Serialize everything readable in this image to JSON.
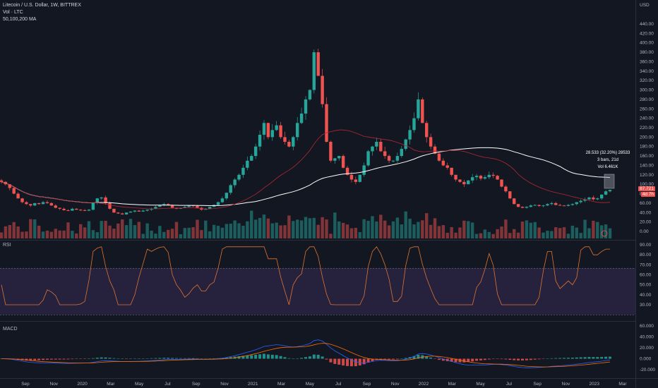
{
  "header": {
    "symbol_line": "Litecoin / U.S. Dollar, 1W, BITTREX",
    "volume_line": "Vol · LTC",
    "ma_line": "50,100,200 MA"
  },
  "price_axis": {
    "currency": "USD",
    "ticks": [
      "440.00",
      "420.00",
      "400.00",
      "380.00",
      "360.00",
      "340.00",
      "320.00",
      "300.00",
      "280.00",
      "260.00",
      "240.00",
      "220.00",
      "200.00",
      "180.00",
      "160.00",
      "140.00",
      "120.00",
      "100.00",
      "80.00",
      "60.00",
      "40.00",
      "20.00",
      "0.00"
    ],
    "last_price": "87.721",
    "last_price_sub": "4d 7h"
  },
  "measure_tool": {
    "line1": "28.533 (32.20%) 28533",
    "line2": "3 bars, 21d",
    "line3": "Vol 6.461K"
  },
  "rsi": {
    "label": "RSI",
    "ticks": [
      "90.00",
      "80.00",
      "70.00",
      "60.00",
      "50.00",
      "40.00",
      "30.00"
    ],
    "upper_band": 70,
    "lower_band": 30
  },
  "macd": {
    "label": "MACD",
    "ticks": [
      "60.000",
      "40.000",
      "20.000",
      "0.000",
      "-20.000"
    ]
  },
  "time_axis": {
    "labels": [
      "Sep",
      "Nov",
      "2020",
      "Mar",
      "May",
      "Jul",
      "Sep",
      "Nov",
      "2021",
      "Mar",
      "May",
      "Jul",
      "Sep",
      "Nov",
      "2022",
      "Mar",
      "May",
      "Jul",
      "Sep",
      "Nov",
      "2023",
      "Mar"
    ]
  },
  "colors": {
    "up": "#26a69a",
    "down": "#ef5350",
    "ma_white": "#ffffff",
    "ma_red": "#b22833",
    "rsi_line": "#e0742d",
    "rsi_band": "#7e57c2",
    "macd_line": "#2962ff",
    "signal_line": "#ff6d00",
    "background": "#131722"
  },
  "chart_data": {
    "type": "candlestick",
    "timeframe": "1W",
    "price_range": [
      0,
      440
    ],
    "closes_approx": [
      105,
      100,
      92,
      80,
      70,
      62,
      58,
      55,
      60,
      58,
      62,
      60,
      55,
      50,
      48,
      45,
      44,
      48,
      46,
      45,
      44,
      46,
      60,
      70,
      72,
      60,
      48,
      40,
      38,
      36,
      40,
      42,
      44,
      42,
      44,
      46,
      48,
      52,
      56,
      58,
      55,
      50,
      48,
      50,
      52,
      55,
      54,
      50,
      46,
      48,
      52,
      56,
      62,
      70,
      82,
      98,
      110,
      120,
      135,
      150,
      160,
      180,
      205,
      230,
      200,
      215,
      225,
      200,
      190,
      180,
      200,
      230,
      250,
      280,
      300,
      380,
      330,
      270,
      190,
      150,
      155,
      160,
      135,
      120,
      110,
      105,
      120,
      140,
      170,
      180,
      190,
      170,
      160,
      150,
      150,
      160,
      175,
      195,
      215,
      240,
      280,
      230,
      200,
      180,
      165,
      150,
      140,
      135,
      120,
      110,
      105,
      100,
      108,
      115,
      118,
      112,
      115,
      120,
      118,
      110,
      95,
      85,
      70,
      58,
      52,
      50,
      52,
      55,
      56,
      54,
      55,
      58,
      60,
      56,
      55,
      54,
      56,
      58,
      62,
      65,
      68,
      72,
      68,
      70,
      78,
      85,
      88
    ],
    "rsi_range": [
      30,
      90
    ],
    "macd_range": [
      -20,
      60
    ]
  }
}
